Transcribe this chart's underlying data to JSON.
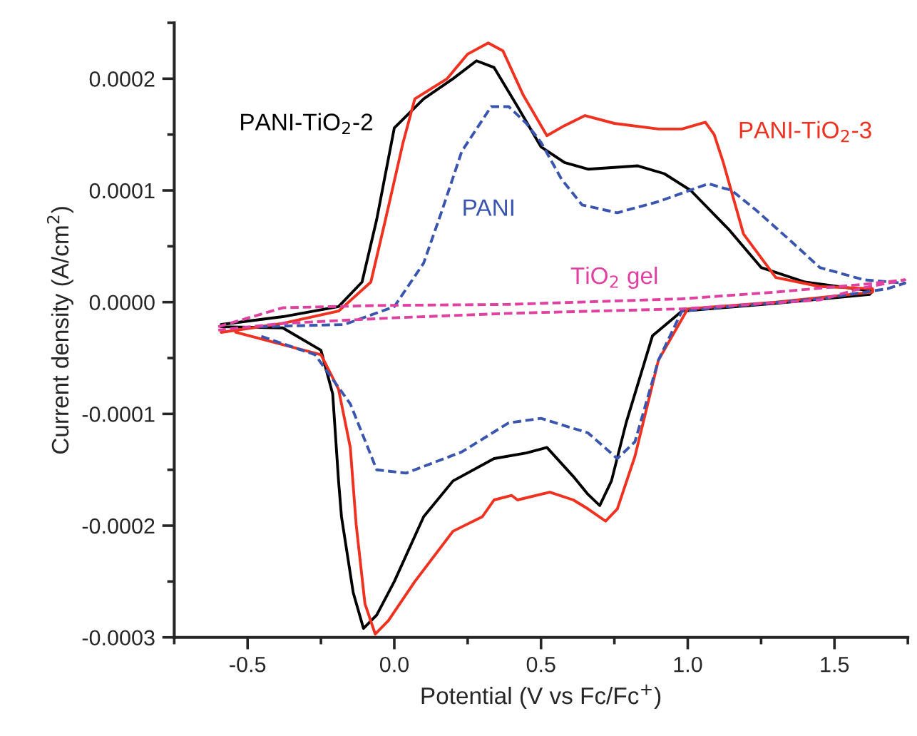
{
  "chart_data": {
    "type": "line",
    "xlabel": "Potential (V vs Fc/Fc$^{+}$)",
    "ylabel": "Current density (A/cm$^{2}$)",
    "xlim": [
      -0.75,
      1.75
    ],
    "ylim": [
      -0.0003,
      0.00025
    ],
    "xticks": [
      {
        "value": -0.5,
        "label": "-0.5"
      },
      {
        "value": 0,
        "label": "0.0"
      },
      {
        "value": 0.5,
        "label": "0.5"
      },
      {
        "value": 1,
        "label": "1.0"
      },
      {
        "value": 1.5,
        "label": "1.5"
      }
    ],
    "yticks": [
      {
        "value": -0.0003,
        "label": "-0.0003"
      },
      {
        "value": -0.0002,
        "label": "-0.0002"
      },
      {
        "value": -0.0001,
        "label": "-0.0001"
      },
      {
        "value": 0,
        "label": "0.0000"
      },
      {
        "value": 0.0001,
        "label": "0.0001"
      },
      {
        "value": 0.0002,
        "label": "0.0002"
      }
    ],
    "grid": false,
    "legend": false,
    "series": [
      {
        "name": "PANI-TiO$_{2}$-2",
        "color": "#000000",
        "line_style": "solid",
        "x": [
          -0.59,
          -0.38,
          -0.19,
          -0.11,
          -0.06,
          0.0,
          0.1,
          0.2,
          0.28,
          0.34,
          0.42,
          0.5,
          0.58,
          0.66,
          0.83,
          0.92,
          1.01,
          1.14,
          1.25,
          1.4,
          1.57,
          1.63,
          1.62,
          1.3,
          0.98,
          0.88,
          0.79,
          0.74,
          0.7,
          0.66,
          0.61,
          0.52,
          0.45,
          0.34,
          0.2,
          0.1,
          0.0,
          -0.06,
          -0.105,
          -0.14,
          -0.18,
          -0.19,
          -0.21,
          -0.25,
          -0.38,
          -0.59
        ],
        "values": [
          -2e-05,
          -1.3e-05,
          -4e-06,
          1.8e-05,
          7.4e-05,
          0.000156,
          0.000182,
          0.0002,
          0.000216,
          0.00021,
          0.000175,
          0.000139,
          0.000125,
          0.000119,
          0.000122,
          0.000115,
          0.0001,
          6.5e-05,
          3.1e-05,
          1.8e-05,
          1.2e-05,
          1e-05,
          7e-06,
          -1e-06,
          -8e-06,
          -3e-05,
          -0.000108,
          -0.00016,
          -0.000182,
          -0.000172,
          -0.000156,
          -0.00013,
          -0.000135,
          -0.00014,
          -0.00016,
          -0.000192,
          -0.00025,
          -0.00028,
          -0.000292,
          -0.00026,
          -0.000192,
          -0.00016,
          -8.2e-05,
          -4.3e-05,
          -2.3e-05,
          -2.2e-05
        ]
      },
      {
        "name": "PANI-TiO$_{2}$-3",
        "color": "#f0311f",
        "line_style": "solid",
        "x": [
          -0.59,
          -0.38,
          -0.19,
          -0.08,
          -0.03,
          0.03,
          0.07,
          0.18,
          0.25,
          0.32,
          0.37,
          0.44,
          0.52,
          0.58,
          0.65,
          0.75,
          0.9,
          0.98,
          1.06,
          1.09,
          1.12,
          1.19,
          1.3,
          1.45,
          1.63,
          1.63,
          1.3,
          1.0,
          0.9,
          0.82,
          0.76,
          0.72,
          0.66,
          0.61,
          0.53,
          0.42,
          0.4,
          0.34,
          0.3,
          0.2,
          0.07,
          -0.02,
          -0.065,
          -0.1,
          -0.13,
          -0.15,
          -0.19,
          -0.25,
          -0.54
        ],
        "values": [
          -2.7e-05,
          -1.9e-05,
          -8e-06,
          1.8e-05,
          7.4e-05,
          0.000143,
          0.000182,
          0.0002,
          0.000222,
          0.000232,
          0.000225,
          0.000185,
          0.000149,
          0.000158,
          0.000167,
          0.00016,
          0.000155,
          0.000155,
          0.000161,
          0.00015,
          0.000126,
          6.1e-05,
          2.2e-05,
          1.4e-05,
          1.2e-05,
          9e-06,
          0.0,
          -6e-06,
          -5.2e-05,
          -0.000138,
          -0.000185,
          -0.000196,
          -0.000185,
          -0.000177,
          -0.00017,
          -0.000177,
          -0.000173,
          -0.000177,
          -0.000192,
          -0.000205,
          -0.00025,
          -0.000285,
          -0.000297,
          -0.00027,
          -0.000199,
          -0.00013,
          -7.8e-05,
          -4.7e-05,
          -2.7e-05
        ]
      },
      {
        "name": "PANI",
        "color": "#3a55b0",
        "line_style": "dashed",
        "x": [
          -0.46,
          -0.17,
          0.0,
          0.1,
          0.16,
          0.23,
          0.33,
          0.39,
          0.45,
          0.5,
          0.57,
          0.64,
          0.76,
          0.9,
          1.07,
          1.15,
          1.23,
          1.35,
          1.45,
          1.6,
          1.74,
          1.68,
          1.45,
          1.14,
          0.98,
          0.9,
          0.82,
          0.76,
          0.66,
          0.5,
          0.39,
          0.23,
          0.04,
          -0.06,
          -0.15,
          -0.27,
          -0.46
        ],
        "values": [
          -2.2e-05,
          -2e-05,
          -4e-06,
          3.5e-05,
          8e-05,
          0.000135,
          0.000175,
          0.000175,
          0.00016,
          0.000143,
          0.00011,
          8.7e-05,
          8e-05,
          9e-05,
          0.000106,
          0.0001,
          8.3e-05,
          5.5e-05,
          3.1e-05,
          2e-05,
          1.7e-05,
          1.2e-05,
          3e-06,
          -4e-06,
          -8e-06,
          -5.2e-05,
          -0.000125,
          -0.00014,
          -0.000117,
          -0.000104,
          -0.000108,
          -0.000134,
          -0.000153,
          -0.00015,
          -9.1e-05,
          -4.7e-05,
          -3e-05
        ]
      },
      {
        "name": "TiO$_{2}$ gel",
        "color": "#e040a0",
        "line_style": "dashed",
        "x": [
          -0.6,
          -0.38,
          -0.06,
          0.39,
          0.98,
          1.3,
          1.6,
          1.74,
          1.6,
          1.45,
          0.98,
          0.39,
          0.0,
          -0.38,
          -0.6
        ],
        "values": [
          -2.2e-05,
          -5e-06,
          -3e-06,
          -2e-06,
          3e-06,
          9e-06,
          1.6e-05,
          2e-05,
          1.3e-05,
          2e-06,
          -6e-06,
          -1e-05,
          -1.4e-05,
          -1.9e-05,
          -2.5e-05
        ]
      }
    ]
  }
}
